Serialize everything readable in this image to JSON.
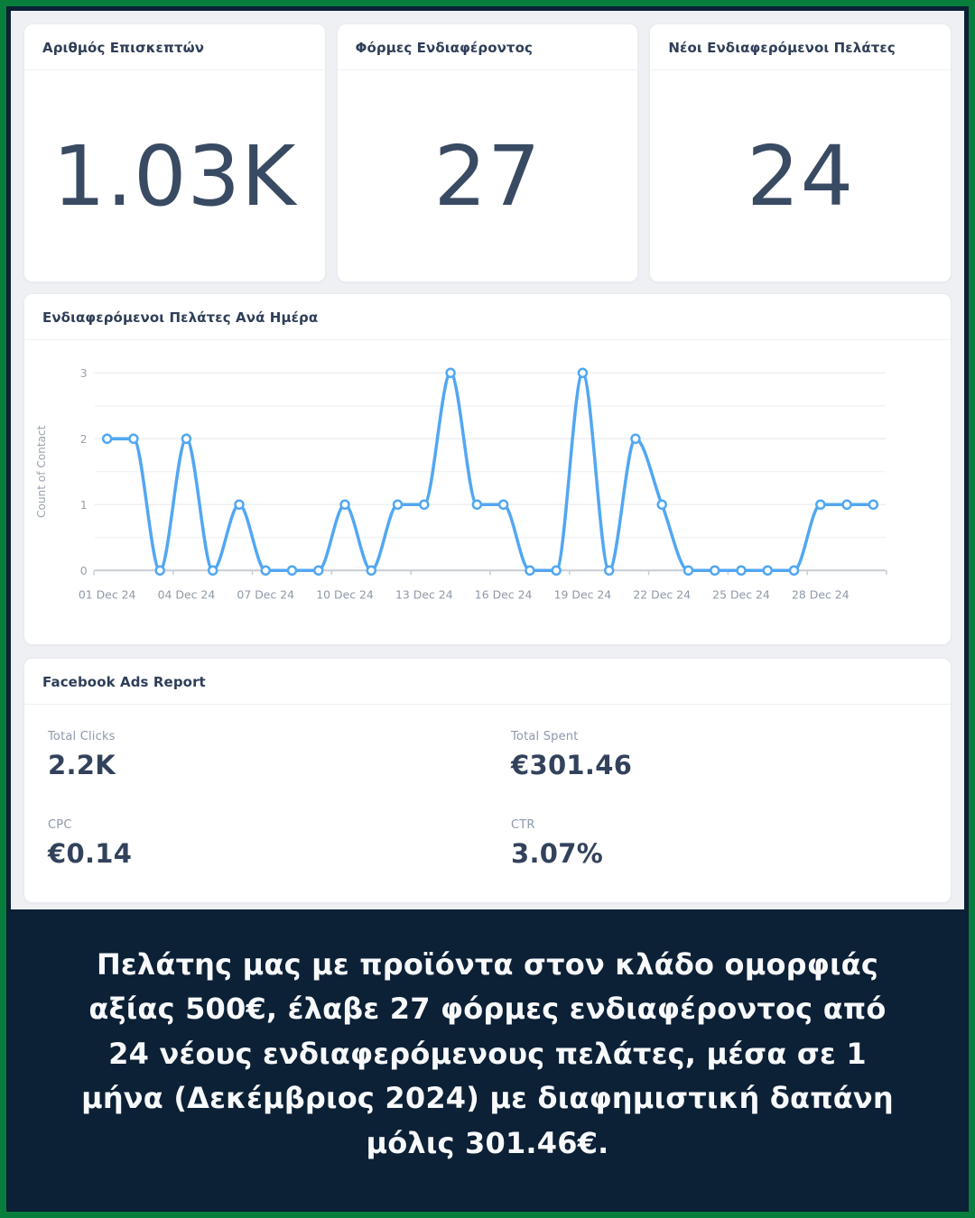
{
  "colors": {
    "border_green": "#077e3b",
    "navy": "#0c2036",
    "dashboard_bg": "#eef0f4",
    "card_bg": "#ffffff",
    "heading_text": "#2f3e58",
    "kpi_text": "#394a63",
    "muted_label": "#8e98ab",
    "chart_line": "#52a7f2",
    "axis_line": "#c7ccd5",
    "axis_text": "#9aa2b1",
    "grid_major": "#edeff3",
    "grid_minor": "#f3f4f6"
  },
  "kpi_cards": [
    {
      "title": "Αριθμός Επισκεπτών",
      "value": "1.03K"
    },
    {
      "title": "Φόρμες Ενδιαφέροντος",
      "value": "27"
    },
    {
      "title": "Νέοι Ενδιαφερόμενοι Πελάτες",
      "value": "24"
    }
  ],
  "chart_data": {
    "type": "line",
    "title": "Ενδιαφερόμενοι Πελάτες Ανά Ημέρα",
    "ylabel": "Count of Contact",
    "xlabel": "",
    "x": [
      "01 Dec 24",
      "02 Dec 24",
      "03 Dec 24",
      "04 Dec 24",
      "05 Dec 24",
      "06 Dec 24",
      "07 Dec 24",
      "08 Dec 24",
      "09 Dec 24",
      "10 Dec 24",
      "11 Dec 24",
      "12 Dec 24",
      "13 Dec 24",
      "14 Dec 24",
      "15 Dec 24",
      "16 Dec 24",
      "17 Dec 24",
      "18 Dec 24",
      "19 Dec 24",
      "20 Dec 24",
      "21 Dec 24",
      "22 Dec 24",
      "23 Dec 24",
      "24 Dec 24",
      "25 Dec 24",
      "26 Dec 24",
      "27 Dec 24",
      "28 Dec 24",
      "29 Dec 24",
      "30 Dec 24"
    ],
    "values": [
      2,
      2,
      0,
      2,
      0,
      1,
      0,
      0,
      0,
      1,
      0,
      1,
      1,
      3,
      1,
      1,
      0,
      0,
      3,
      0,
      2,
      1,
      0,
      0,
      0,
      0,
      0,
      1,
      1,
      1
    ],
    "x_tick_indices": [
      0,
      3,
      6,
      9,
      12,
      15,
      18,
      21,
      24,
      27
    ],
    "x_tick_labels": [
      "01 Dec 24",
      "04 Dec 24",
      "07 Dec 24",
      "10 Dec 24",
      "13 Dec 24",
      "16 Dec 24",
      "19 Dec 24",
      "22 Dec 24",
      "25 Dec 24",
      "28 Dec 24"
    ],
    "yticks": [
      0,
      1,
      2,
      3
    ],
    "ylim": [
      0,
      3
    ],
    "grid_step": 0.5,
    "grid": true,
    "legend_position": "none",
    "line_color": "#52a7f2",
    "marker": "open-circle",
    "curve": "monotone"
  },
  "fb_report": {
    "title": "Facebook Ads Report",
    "metrics": [
      {
        "label": "Total Clicks",
        "value": "2.2K"
      },
      {
        "label": "Total Spent",
        "value": "€301.46"
      },
      {
        "label": "CPC",
        "value": "€0.14"
      },
      {
        "label": "CTR",
        "value": "3.07%"
      }
    ]
  },
  "caption": {
    "text": "Πελάτης μας με προϊόντα στον κλάδο ομορφιάς αξίας 500€, έλαβε 27 φόρμες ενδιαφέροντος από 24 νέους ενδιαφερόμενους πελάτες, μέσα σε 1 μήνα (Δεκέμβριος 2024) με διαφημιστική δαπάνη μόλις 301.46€."
  }
}
